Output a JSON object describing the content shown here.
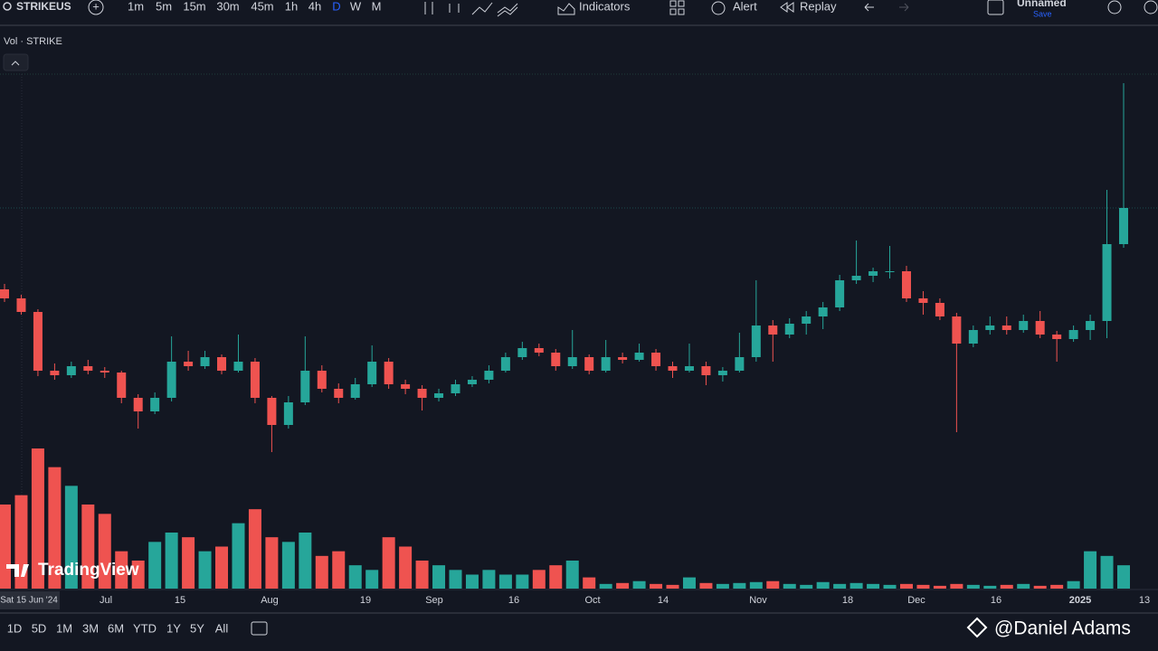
{
  "toolbar": {
    "symbol": "STRIKEUS",
    "intervals": [
      "1m",
      "5m",
      "15m",
      "30m",
      "45m",
      "1h",
      "4h",
      "D",
      "W",
      "M"
    ],
    "active_interval": 7,
    "indicators": "Indicators",
    "alert": "Alert",
    "replay": "Replay",
    "layout_name": "Unnamed",
    "save": "Save"
  },
  "legend": "Vol · STRIKE",
  "chart": {
    "up_color": "#26a69a",
    "down_color": "#ef5350",
    "ohlc": [
      [
        20.0,
        20.6,
        18.6,
        19.0
      ],
      [
        19.0,
        19.4,
        17.2,
        17.5
      ],
      [
        17.5,
        17.8,
        10.4,
        11.0
      ],
      [
        11.0,
        11.8,
        10.0,
        10.5
      ],
      [
        10.5,
        12.0,
        10.2,
        11.5
      ],
      [
        11.5,
        12.2,
        10.6,
        11.0
      ],
      [
        11.0,
        11.4,
        10.2,
        10.8
      ],
      [
        10.8,
        11.0,
        7.4,
        8.0
      ],
      [
        8.0,
        8.4,
        4.6,
        6.5
      ],
      [
        6.5,
        8.6,
        6.2,
        8.0
      ],
      [
        8.0,
        14.8,
        7.6,
        12.0
      ],
      [
        12.0,
        13.2,
        11.0,
        11.5
      ],
      [
        11.5,
        13.2,
        11.2,
        12.5
      ],
      [
        12.5,
        12.8,
        10.6,
        11.0
      ],
      [
        11.0,
        15.0,
        10.8,
        12.0
      ],
      [
        12.0,
        12.4,
        7.4,
        8.0
      ],
      [
        8.0,
        8.2,
        2.0,
        5.0
      ],
      [
        5.0,
        8.2,
        4.6,
        7.5
      ],
      [
        7.5,
        14.8,
        7.2,
        11.0
      ],
      [
        11.0,
        11.6,
        8.6,
        9.0
      ],
      [
        9.0,
        9.6,
        7.4,
        8.0
      ],
      [
        8.0,
        10.2,
        7.8,
        9.5
      ],
      [
        9.5,
        13.8,
        9.2,
        12.0
      ],
      [
        12.0,
        12.4,
        9.0,
        9.5
      ],
      [
        9.5,
        10.0,
        8.4,
        9.0
      ],
      [
        9.0,
        9.4,
        6.6,
        8.0
      ],
      [
        8.0,
        9.0,
        7.6,
        8.5
      ],
      [
        8.5,
        10.0,
        8.2,
        9.5
      ],
      [
        9.5,
        10.4,
        9.2,
        10.0
      ],
      [
        10.0,
        11.6,
        9.6,
        11.0
      ],
      [
        11.0,
        13.0,
        10.8,
        12.5
      ],
      [
        12.5,
        14.2,
        12.2,
        13.5
      ],
      [
        13.5,
        14.0,
        12.6,
        13.0
      ],
      [
        13.0,
        13.4,
        11.0,
        11.5
      ],
      [
        11.5,
        15.5,
        11.2,
        12.5
      ],
      [
        12.5,
        12.8,
        10.6,
        11.0
      ],
      [
        11.0,
        14.4,
        10.8,
        12.5
      ],
      [
        12.5,
        13.0,
        11.8,
        12.2
      ],
      [
        12.2,
        14.0,
        12.0,
        13.0
      ],
      [
        13.0,
        13.4,
        11.0,
        11.5
      ],
      [
        11.5,
        12.0,
        10.2,
        11.0
      ],
      [
        11.0,
        14.0,
        10.8,
        11.5
      ],
      [
        11.5,
        12.0,
        9.4,
        10.5
      ],
      [
        10.5,
        11.4,
        9.8,
        11.0
      ],
      [
        11.0,
        15.2,
        10.8,
        12.5
      ],
      [
        12.5,
        21.0,
        12.0,
        16.0
      ],
      [
        16.0,
        16.6,
        12.0,
        15.0
      ],
      [
        15.0,
        16.8,
        14.6,
        16.2
      ],
      [
        16.2,
        17.6,
        15.0,
        17.0
      ],
      [
        17.0,
        18.6,
        15.6,
        18.0
      ],
      [
        18.0,
        21.6,
        17.6,
        21.0
      ],
      [
        21.0,
        25.4,
        20.6,
        21.5
      ],
      [
        21.5,
        22.4,
        20.8,
        22.0
      ],
      [
        22.0,
        24.8,
        21.2,
        22.0
      ],
      [
        22.0,
        22.6,
        18.6,
        19.0
      ],
      [
        19.0,
        19.8,
        17.2,
        18.5
      ],
      [
        18.5,
        19.0,
        16.6,
        17.0
      ],
      [
        17.0,
        17.4,
        4.2,
        14.0
      ],
      [
        14.0,
        16.0,
        13.6,
        15.5
      ],
      [
        15.5,
        17.0,
        15.0,
        16.0
      ],
      [
        16.0,
        17.0,
        15.0,
        15.5
      ],
      [
        15.5,
        17.2,
        15.2,
        16.5
      ],
      [
        16.5,
        17.6,
        14.6,
        15.0
      ],
      [
        15.0,
        15.4,
        12.0,
        14.5
      ],
      [
        14.5,
        16.0,
        14.2,
        15.5
      ],
      [
        15.5,
        17.2,
        14.4,
        16.5
      ],
      [
        16.5,
        31.0,
        14.6,
        25.0
      ],
      [
        25.0,
        42.8,
        24.6,
        29.0
      ]
    ],
    "volume": [
      90,
      100,
      150,
      130,
      110,
      90,
      80,
      40,
      30,
      50,
      60,
      55,
      40,
      45,
      70,
      85,
      55,
      50,
      60,
      35,
      40,
      25,
      20,
      55,
      45,
      30,
      25,
      20,
      15,
      20,
      15,
      15,
      20,
      25,
      30,
      12,
      5,
      6,
      8,
      5,
      4,
      12,
      6,
      5,
      6,
      7,
      8,
      5,
      4,
      7,
      5,
      6,
      5,
      4,
      5,
      4,
      3,
      5,
      4,
      3,
      4,
      5,
      3,
      4,
      8,
      40,
      35,
      25
    ]
  },
  "time_axis": [
    "Sat 15 Jun '24",
    "Jul",
    "15",
    "Aug",
    "19",
    "Sep",
    "16",
    "Oct",
    "14",
    "Nov",
    "18",
    "Dec",
    "16",
    "2025",
    "13"
  ],
  "ranges": [
    "1D",
    "5D",
    "1M",
    "3M",
    "6M",
    "YTD",
    "1Y",
    "5Y",
    "All"
  ],
  "watermark": "TradingView",
  "credit": "@Daniel Adams"
}
